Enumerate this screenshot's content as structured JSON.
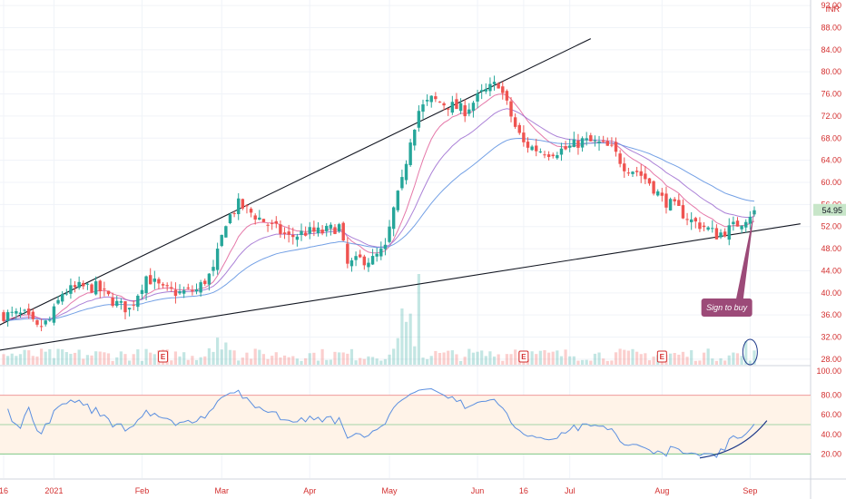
{
  "chart_data": {
    "type": "candlestick",
    "price_axis": {
      "currency_label": "INR",
      "ticks": [
        "92.00",
        "88.00",
        "84.00",
        "80.00",
        "76.00",
        "72.00",
        "68.00",
        "64.00",
        "60.00",
        "56.00",
        "52.00",
        "48.00",
        "44.00",
        "40.00",
        "36.00",
        "32.00",
        "28.00"
      ],
      "tick_values": [
        92,
        88,
        84,
        80,
        76,
        72,
        68,
        64,
        60,
        56,
        52,
        48,
        44,
        40,
        36,
        32,
        28
      ],
      "ylim": [
        27,
        93
      ],
      "last_price": "54.95",
      "last_price_value": 54.95
    },
    "rsi_axis": {
      "ticks": [
        "100.00",
        "80.00",
        "60.00",
        "40.00",
        "20.00"
      ],
      "tick_values": [
        100,
        80,
        60,
        40,
        20
      ],
      "overbought": 80,
      "midline": 50,
      "oversold": 20
    },
    "time_axis": {
      "labels": [
        "16",
        "2021",
        "Feb",
        "Mar",
        "Apr",
        "May",
        "Jun",
        "16",
        "Jul",
        "Aug",
        "Sep"
      ],
      "positions": [
        0,
        12,
        33,
        52,
        73,
        92,
        113,
        124,
        135,
        157,
        178
      ]
    },
    "bar_count": 180,
    "anchors": [
      [
        0,
        36
      ],
      [
        5,
        36
      ],
      [
        8,
        33.5
      ],
      [
        11,
        35
      ],
      [
        14,
        40
      ],
      [
        18,
        41
      ],
      [
        22,
        41
      ],
      [
        27,
        38
      ],
      [
        30,
        37
      ],
      [
        34,
        43
      ],
      [
        38,
        40.5
      ],
      [
        42,
        40
      ],
      [
        46,
        40.5
      ],
      [
        50,
        44
      ],
      [
        53,
        53
      ],
      [
        56,
        56
      ],
      [
        60,
        54
      ],
      [
        64,
        52
      ],
      [
        68,
        50
      ],
      [
        72,
        51
      ],
      [
        76,
        51
      ],
      [
        80,
        52
      ],
      [
        82,
        45
      ],
      [
        85,
        46
      ],
      [
        88,
        46
      ],
      [
        91,
        48
      ],
      [
        93,
        55
      ],
      [
        95,
        60
      ],
      [
        97,
        68
      ],
      [
        99,
        73
      ],
      [
        102,
        75
      ],
      [
        106,
        74
      ],
      [
        110,
        73
      ],
      [
        114,
        76
      ],
      [
        118,
        78
      ],
      [
        120,
        74
      ],
      [
        122,
        70
      ],
      [
        124,
        67
      ],
      [
        127,
        66
      ],
      [
        130,
        65.5
      ],
      [
        134,
        66
      ],
      [
        138,
        67.5
      ],
      [
        142,
        67
      ],
      [
        145,
        66
      ],
      [
        148,
        63
      ],
      [
        151,
        62
      ],
      [
        154,
        60
      ],
      [
        157,
        57
      ],
      [
        161,
        55
      ],
      [
        164,
        53
      ],
      [
        167,
        52
      ],
      [
        170,
        50.5
      ],
      [
        173,
        51.5
      ],
      [
        176,
        53
      ],
      [
        179,
        55
      ]
    ],
    "ema_series": [
      {
        "period": 10,
        "color": "#e0609a"
      },
      {
        "period": 20,
        "color": "#9c6bd0"
      },
      {
        "period": 40,
        "color": "#5b8fe0"
      }
    ],
    "trendlines": [
      {
        "from": [
          -2,
          33.8
        ],
        "to": [
          140,
          86
        ]
      },
      {
        "from": [
          -2,
          29.5
        ],
        "to": [
          190,
          52.5
        ]
      }
    ],
    "earnings_markers": {
      "label": "E",
      "bars": [
        38,
        124,
        157
      ]
    },
    "colors": {
      "up": "#26a69a",
      "down": "#ef5350",
      "rsi": "#5b8fe0",
      "rsi_band": "#fff3e8",
      "axis_text": "#d32f2f",
      "price_tag": "#c8e6c9",
      "annotation": "#9c4a78"
    },
    "annotation": {
      "text": "Sign to buy"
    }
  }
}
